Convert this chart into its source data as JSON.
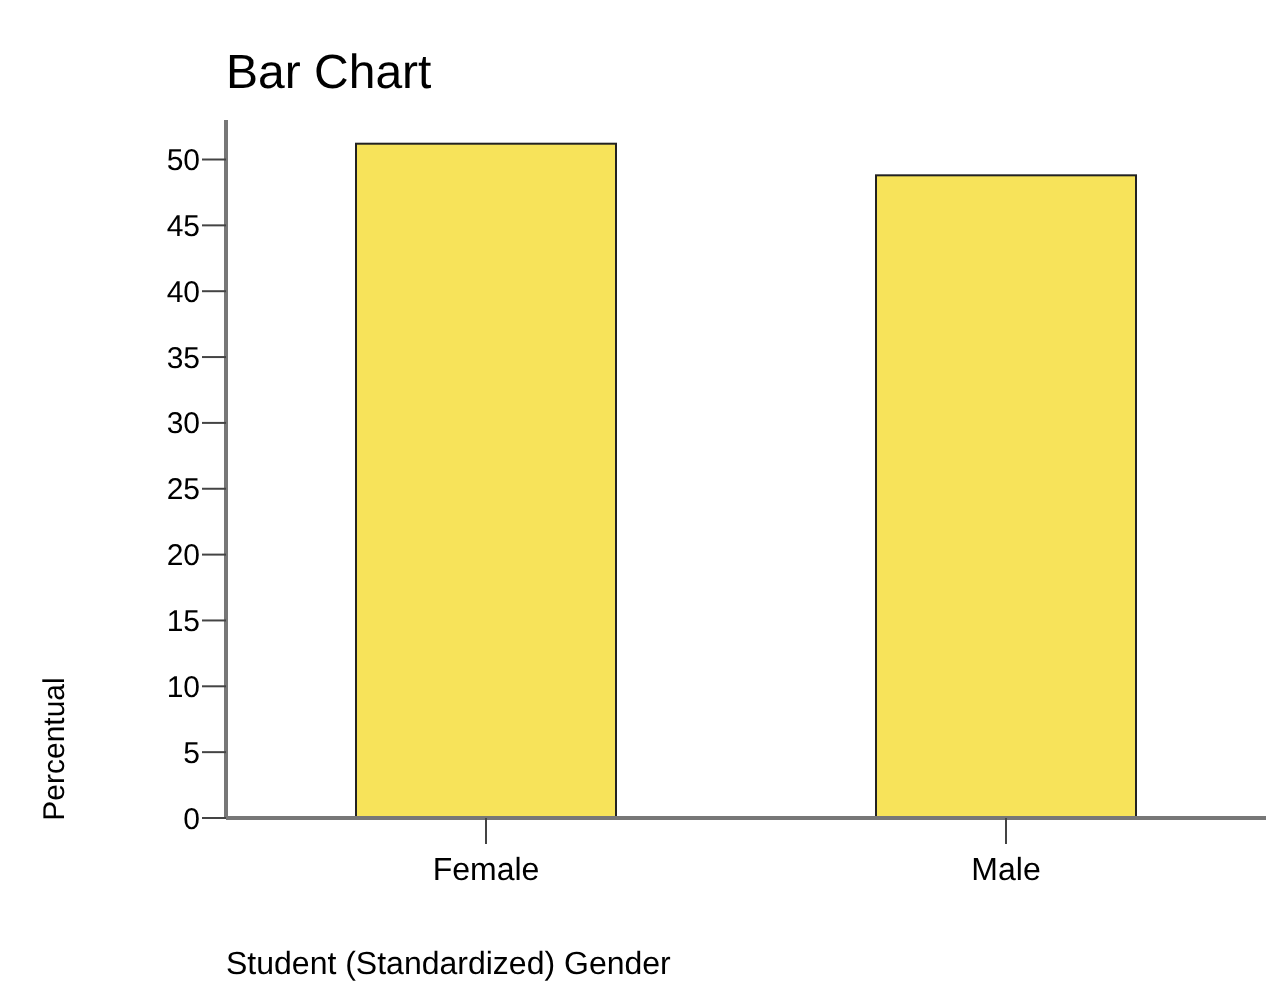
{
  "chart_data": {
    "type": "bar",
    "title": "Bar Chart",
    "xlabel": "Student (Standardized) Gender",
    "ylabel": "Percentual",
    "categories": [
      "Female",
      "Male"
    ],
    "values": [
      51.2,
      48.8
    ],
    "color": "#f7e35a",
    "ylim": [
      0,
      53
    ],
    "yticks": [
      0,
      5,
      10,
      15,
      20,
      25,
      30,
      35,
      40,
      45,
      50
    ],
    "grid": false
  }
}
